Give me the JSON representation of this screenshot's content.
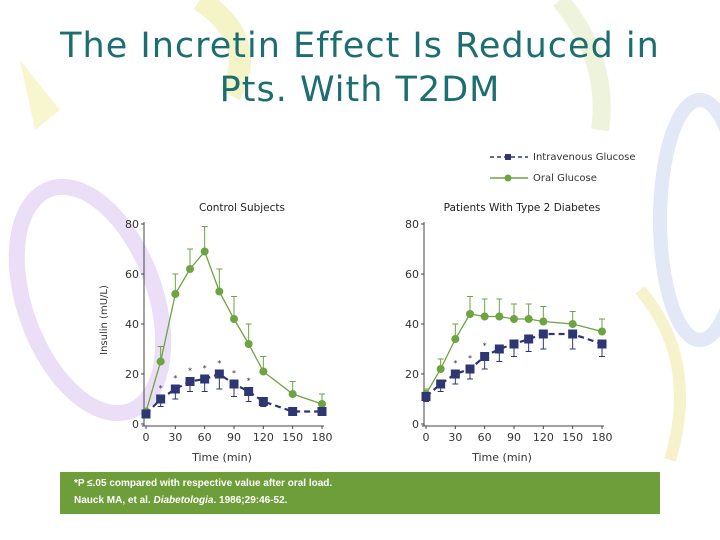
{
  "slide": {
    "title_line1": "The Incretin Effect Is Reduced in",
    "title_line2": "Pts. With T2DM"
  },
  "footer": {
    "note": "*P ≤.05 compared with respective value after oral load.",
    "citation_authors": "Nauck MA, et al.",
    "citation_journal": "Diabetologia",
    "citation_rest": ". 1986;29:46-52.",
    "background_color": "#6e9e3a"
  },
  "legend": {
    "iv_label": "Intravenous Glucose",
    "oral_label": "Oral Glucose"
  },
  "colors": {
    "title": "#1d6e72",
    "iv": "#2e3673",
    "oral": "#6ea342",
    "axis": "#444444"
  },
  "chart_data": [
    {
      "type": "line",
      "title": "Control Subjects",
      "xlabel": "Time (min)",
      "ylabel": "Insulin (mU/L)",
      "xlim": [
        0,
        180
      ],
      "ylim": [
        0,
        80
      ],
      "xticks": [
        0,
        30,
        60,
        90,
        120,
        150,
        180
      ],
      "yticks": [
        0,
        20,
        40,
        60,
        80
      ],
      "series": [
        {
          "name": "Intravenous Glucose",
          "style": "dashed",
          "marker": "square",
          "x": [
            0,
            15,
            30,
            45,
            60,
            75,
            90,
            105,
            120,
            150,
            180
          ],
          "y": [
            4,
            10,
            14,
            17,
            18,
            20,
            16,
            13,
            9,
            5,
            5
          ],
          "err": [
            1,
            3,
            4,
            4,
            5,
            6,
            5,
            4,
            2,
            1,
            1
          ],
          "significant": [
            false,
            true,
            true,
            true,
            true,
            true,
            true,
            true,
            false,
            false,
            false
          ]
        },
        {
          "name": "Oral Glucose",
          "style": "solid",
          "marker": "circle",
          "x": [
            0,
            15,
            30,
            45,
            60,
            75,
            90,
            105,
            120,
            150,
            180
          ],
          "y": [
            5,
            25,
            52,
            62,
            69,
            53,
            42,
            32,
            21,
            12,
            8
          ],
          "err": [
            1,
            6,
            8,
            8,
            10,
            9,
            9,
            8,
            6,
            5,
            4
          ]
        }
      ]
    },
    {
      "type": "line",
      "title": "Patients With Type 2 Diabetes",
      "xlabel": "Time (min)",
      "ylabel": "",
      "xlim": [
        0,
        180
      ],
      "ylim": [
        0,
        80
      ],
      "xticks": [
        0,
        30,
        60,
        90,
        120,
        150,
        180
      ],
      "yticks": [
        0,
        20,
        40,
        60,
        80
      ],
      "series": [
        {
          "name": "Intravenous Glucose",
          "style": "dashed",
          "marker": "square",
          "x": [
            0,
            15,
            30,
            45,
            60,
            75,
            90,
            105,
            120,
            150,
            180
          ],
          "y": [
            11,
            16,
            20,
            22,
            27,
            30,
            32,
            34,
            36,
            36,
            32
          ],
          "err": [
            2,
            3,
            4,
            4,
            5,
            5,
            5,
            5,
            6,
            6,
            5
          ],
          "significant": [
            false,
            false,
            true,
            true,
            true,
            false,
            false,
            false,
            false,
            false,
            false
          ]
        },
        {
          "name": "Oral Glucose",
          "style": "solid",
          "marker": "circle",
          "x": [
            0,
            15,
            30,
            45,
            60,
            75,
            90,
            105,
            120,
            150,
            180
          ],
          "y": [
            12,
            22,
            34,
            44,
            43,
            43,
            42,
            42,
            41,
            40,
            37
          ],
          "err": [
            2,
            4,
            6,
            7,
            7,
            7,
            6,
            6,
            6,
            5,
            5
          ]
        }
      ]
    }
  ]
}
